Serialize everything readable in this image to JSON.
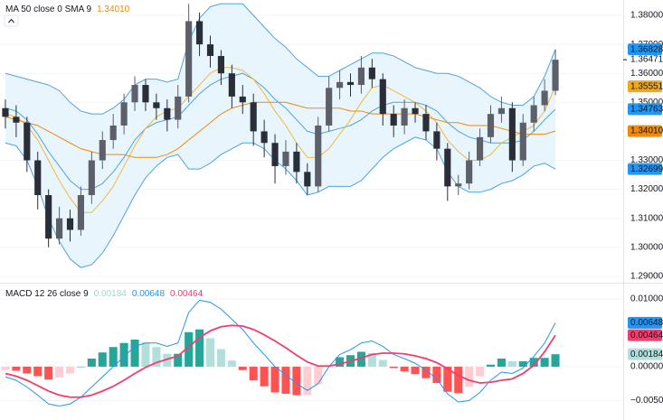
{
  "chart_data": [
    {
      "type": "candlestick",
      "title": "MA 50 close 0 SMA 9",
      "legend": [
        {
          "text": "1.34010",
          "color": "#ef8a0c"
        }
      ],
      "open": [
        1.348,
        1.345,
        1.343,
        1.33,
        1.318,
        1.303,
        1.31,
        1.306,
        1.318,
        1.33,
        1.337,
        1.342,
        1.35,
        1.356,
        1.35,
        1.348,
        1.344,
        1.352,
        1.378,
        1.37,
        1.366,
        1.36,
        1.352,
        1.35,
        1.34,
        1.336,
        1.328,
        1.333,
        1.326,
        1.321,
        1.342,
        1.355,
        1.357,
        1.356,
        1.362,
        1.358,
        1.346,
        1.342,
        1.348,
        1.346,
        1.34,
        1.334,
        1.321,
        1.322,
        1.33,
        1.338,
        1.346,
        1.348,
        1.33,
        1.343,
        1.349,
        1.354
      ],
      "high": [
        1.351,
        1.349,
        1.345,
        1.333,
        1.32,
        1.314,
        1.313,
        1.321,
        1.333,
        1.34,
        1.346,
        1.353,
        1.359,
        1.358,
        1.353,
        1.351,
        1.356,
        1.384,
        1.381,
        1.373,
        1.368,
        1.363,
        1.356,
        1.353,
        1.344,
        1.339,
        1.337,
        1.336,
        1.329,
        1.345,
        1.359,
        1.361,
        1.36,
        1.366,
        1.365,
        1.36,
        1.349,
        1.351,
        1.35,
        1.349,
        1.343,
        1.336,
        1.325,
        1.333,
        1.341,
        1.349,
        1.352,
        1.35,
        1.346,
        1.352,
        1.358,
        1.3682
      ],
      "low": [
        1.341,
        1.338,
        1.326,
        1.313,
        1.3,
        1.301,
        1.302,
        1.304,
        1.315,
        1.327,
        1.334,
        1.339,
        1.347,
        1.347,
        1.344,
        1.34,
        1.341,
        1.35,
        1.366,
        1.362,
        1.356,
        1.348,
        1.346,
        1.335,
        1.331,
        1.322,
        1.325,
        1.322,
        1.318,
        1.319,
        1.34,
        1.351,
        1.352,
        1.353,
        1.355,
        1.342,
        1.338,
        1.339,
        1.343,
        1.337,
        1.33,
        1.316,
        1.318,
        1.32,
        1.328,
        1.336,
        1.343,
        1.326,
        1.328,
        1.34,
        1.347,
        1.3525
      ],
      "close": [
        1.345,
        1.343,
        1.33,
        1.318,
        1.303,
        1.31,
        1.306,
        1.318,
        1.33,
        1.337,
        1.342,
        1.35,
        1.356,
        1.35,
        1.348,
        1.344,
        1.352,
        1.378,
        1.37,
        1.366,
        1.36,
        1.352,
        1.35,
        1.34,
        1.336,
        1.328,
        1.333,
        1.326,
        1.321,
        1.342,
        1.355,
        1.357,
        1.356,
        1.362,
        1.358,
        1.346,
        1.342,
        1.348,
        1.346,
        1.34,
        1.334,
        1.321,
        1.322,
        1.33,
        1.338,
        1.346,
        1.348,
        1.33,
        1.343,
        1.349,
        1.354,
        1.3647
      ],
      "up_color": "#5d606b",
      "down_color": "#2a2e39",
      "bands": {
        "color": "#4fa3e0",
        "fill": "#e3f2fd",
        "upper": [
          1.36,
          1.359,
          1.358,
          1.357,
          1.356,
          1.354,
          1.35,
          1.347,
          1.346,
          1.346,
          1.348,
          1.351,
          1.356,
          1.358,
          1.358,
          1.357,
          1.358,
          1.371,
          1.379,
          1.383,
          1.384,
          1.384,
          1.384,
          1.38,
          1.376,
          1.372,
          1.369,
          1.365,
          1.362,
          1.359,
          1.359,
          1.361,
          1.363,
          1.365,
          1.367,
          1.367,
          1.366,
          1.364,
          1.362,
          1.361,
          1.36,
          1.36,
          1.359,
          1.357,
          1.355,
          1.352,
          1.35,
          1.349,
          1.349,
          1.352,
          1.359,
          1.36828
        ],
        "basis": [
          1.348,
          1.347,
          1.344,
          1.339,
          1.333,
          1.328,
          1.323,
          1.32,
          1.32,
          1.322,
          1.326,
          1.331,
          1.337,
          1.341,
          1.343,
          1.344,
          1.345,
          1.349,
          1.353,
          1.356,
          1.358,
          1.359,
          1.36,
          1.358,
          1.355,
          1.351,
          1.348,
          1.344,
          1.34,
          1.339,
          1.34,
          1.341,
          1.342,
          1.344,
          1.347,
          1.349,
          1.35,
          1.35,
          1.35,
          1.349,
          1.347,
          1.343,
          1.34,
          1.338,
          1.337,
          1.336,
          1.336,
          1.336,
          1.337,
          1.34,
          1.344,
          1.34763
        ],
        "lower": [
          1.336,
          1.335,
          1.33,
          1.321,
          1.31,
          1.302,
          1.296,
          1.293,
          1.294,
          1.298,
          1.304,
          1.311,
          1.318,
          1.324,
          1.328,
          1.331,
          1.332,
          1.327,
          1.327,
          1.329,
          1.332,
          1.334,
          1.336,
          1.336,
          1.334,
          1.33,
          1.327,
          1.323,
          1.318,
          1.319,
          1.321,
          1.321,
          1.321,
          1.323,
          1.327,
          1.331,
          1.334,
          1.336,
          1.338,
          1.337,
          1.334,
          1.326,
          1.321,
          1.319,
          1.319,
          1.32,
          1.322,
          1.323,
          1.325,
          1.328,
          1.329,
          1.32699
        ]
      },
      "series": [
        {
          "color": "#f0b93a",
          "values": [
            1.346,
            1.345,
            1.342,
            1.337,
            1.33,
            1.323,
            1.317,
            1.312,
            1.312,
            1.316,
            1.321,
            1.328,
            1.335,
            1.341,
            1.345,
            1.347,
            1.348,
            1.352,
            1.356,
            1.36,
            1.362,
            1.362,
            1.361,
            1.358,
            1.353,
            1.347,
            1.342,
            1.336,
            1.331,
            1.331,
            1.334,
            1.339,
            1.344,
            1.35,
            1.355,
            1.356,
            1.354,
            1.352,
            1.35,
            1.347,
            1.343,
            1.337,
            1.333,
            1.33,
            1.33,
            1.332,
            1.336,
            1.338,
            1.34,
            1.342,
            1.347,
            1.35551
          ]
        },
        {
          "color": "#ef8a0c",
          "values": [
            1.345,
            1.344,
            1.343,
            1.342,
            1.34,
            1.338,
            1.336,
            1.334,
            1.333,
            1.332,
            1.332,
            1.332,
            1.331,
            1.331,
            1.331,
            1.332,
            1.334,
            1.337,
            1.34,
            1.343,
            1.346,
            1.348,
            1.349,
            1.35,
            1.35,
            1.35,
            1.35,
            1.349,
            1.348,
            1.348,
            1.348,
            1.348,
            1.347,
            1.347,
            1.346,
            1.346,
            1.346,
            1.346,
            1.346,
            1.345,
            1.344,
            1.343,
            1.343,
            1.342,
            1.342,
            1.342,
            1.341,
            1.34,
            1.339,
            1.339,
            1.339,
            1.3401
          ]
        }
      ],
      "ylim": [
        1.2881,
        1.3853
      ],
      "yticks": [
        {
          "value": 1.38,
          "label": "1.38000"
        },
        {
          "value": 1.37,
          "label": "1.37000"
        },
        {
          "value": 1.36,
          "label": "1.36000"
        },
        {
          "value": 1.35,
          "label": "1.35000"
        },
        {
          "value": 1.33,
          "label": "1.33000"
        },
        {
          "value": 1.32,
          "label": "1.32000"
        },
        {
          "value": 1.31,
          "label": "1.31000"
        },
        {
          "value": 1.3,
          "label": "1.30000"
        },
        {
          "value": 1.29,
          "label": "1.29000"
        }
      ],
      "grid": true,
      "tags": [
        {
          "value": 1.36828,
          "color": "#2196f3"
        },
        {
          "value": 1.36471
        },
        {
          "value": 1.35551,
          "color": "#f0a81c"
        },
        {
          "value": 1.34763,
          "color": "#2196f3"
        },
        {
          "value": 1.3401,
          "label": "1.34010",
          "color": "#ef8a0c"
        },
        {
          "value": 1.32699,
          "color": "#2196f3"
        }
      ]
    },
    {
      "type": "macd",
      "title": "MACD 12 26 close 9",
      "legend": [
        {
          "text": "0.00184",
          "color": "#9fd6cf"
        },
        {
          "text": "0.00648",
          "color": "#2196f3"
        },
        {
          "text": "0.00464",
          "color": "#f23d6d"
        }
      ],
      "series": [
        {
          "color": "#2196f3",
          "values": [
            -0.0015,
            -0.002,
            -0.003,
            -0.0042,
            -0.0055,
            -0.0058,
            -0.0055,
            -0.0045,
            -0.003,
            -0.0015,
            0,
            0.0015,
            0.003,
            0.0035,
            0.0035,
            0.003,
            0.0035,
            0.008,
            0.0098,
            0.0095,
            0.0085,
            0.007,
            0.0055,
            0.0035,
            0.0018,
            0,
            -0.0012,
            -0.0025,
            -0.0035,
            -0.0025,
            0,
            0.0018,
            0.0025,
            0.0035,
            0.0038,
            0.003,
            0.0018,
            0.0012,
            0.0005,
            -0.0005,
            -0.0018,
            -0.004,
            -0.0052,
            -0.005,
            -0.0038,
            -0.002,
            -0.0008,
            -0.001,
            -0.0002,
            0.0015,
            0.0035,
            0.00648
          ]
        },
        {
          "color": "#f23d6d",
          "values": [
            -0.001,
            -0.0014,
            -0.002,
            -0.0028,
            -0.0036,
            -0.0042,
            -0.0045,
            -0.0045,
            -0.0042,
            -0.0036,
            -0.0029,
            -0.002,
            -0.001,
            -0.0001,
            0.0006,
            0.0011,
            0.0016,
            0.0029,
            0.0043,
            0.0053,
            0.0059,
            0.0061,
            0.006,
            0.0055,
            0.0047,
            0.0038,
            0.0028,
            0.0017,
            0.0007,
            0.0001,
            0.0001,
            0.0004,
            0.0008,
            0.0013,
            0.0018,
            0.002,
            0.002,
            0.0019,
            0.0016,
            0.0012,
            0.0006,
            -0.0003,
            -0.0013,
            -0.002,
            -0.0024,
            -0.0023,
            -0.002,
            -0.0018,
            -0.001,
            0.0002,
            0.0022,
            0.00464
          ]
        }
      ],
      "histogram": {
        "colors": {
          "rising_positive": "#26a69a",
          "falling_positive": "#b2dfdb",
          "falling_negative": "#ff5252",
          "rising_negative": "#ffcdd2"
        },
        "values": [
          -0.0005,
          -0.0006,
          -0.001,
          -0.0014,
          -0.0019,
          -0.0016,
          -0.001,
          0,
          0.0012,
          0.0021,
          0.0029,
          0.0035,
          0.004,
          0.0036,
          0.0029,
          0.0019,
          0.0019,
          0.0051,
          0.0055,
          0.0042,
          0.0026,
          0.0009,
          -0.0005,
          -0.002,
          -0.0029,
          -0.0038,
          -0.004,
          -0.0042,
          -0.0042,
          -0.0026,
          -0.0001,
          0.0014,
          0.0017,
          0.0022,
          0.002,
          0.001,
          -0.0002,
          -0.0007,
          -0.0011,
          -0.0017,
          -0.0024,
          -0.0037,
          -0.0039,
          -0.003,
          -0.0014,
          0.0003,
          0.0012,
          0.0008,
          0.0008,
          0.0013,
          0.0013,
          0.00184
        ]
      },
      "ylim": [
        -0.00787,
        0.01213
      ],
      "yticks": [
        {
          "value": 0.01,
          "label": "0.01000"
        },
        {
          "value": 0,
          "label": "0.00000"
        },
        {
          "value": -0.005,
          "label": "−0.00500"
        }
      ],
      "grid": true,
      "tags": [
        {
          "value": 0.00648,
          "color": "#2196f3"
        },
        {
          "value": 0.00464,
          "color": "#f23d6d"
        },
        {
          "value": 0.00184,
          "color": "#b2dfdb",
          "text_color": "#131722"
        }
      ]
    }
  ]
}
